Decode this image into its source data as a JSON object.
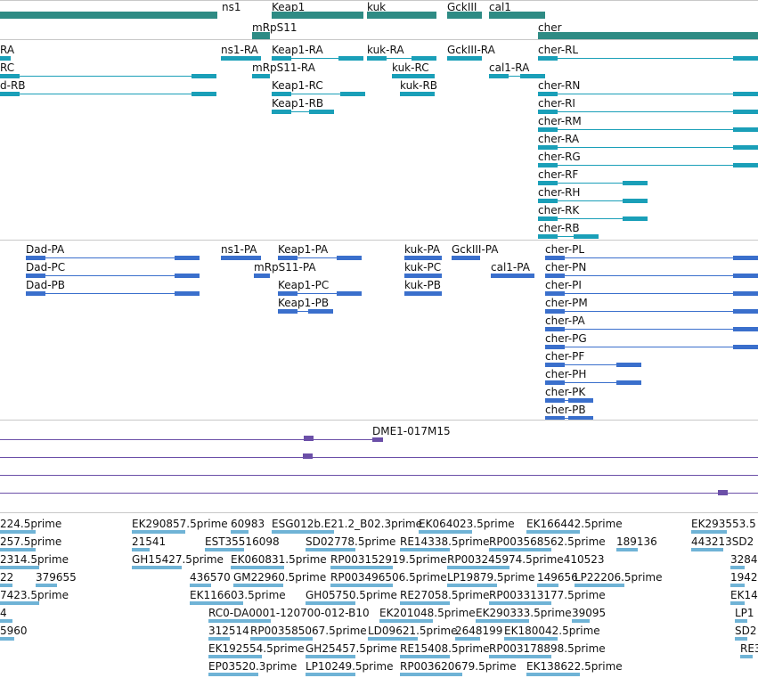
{
  "colors": {
    "gene": "#2e8b84",
    "transcript": "#1a9fb8",
    "protein": "#3a6fcc",
    "clone": "#6b4fa8",
    "est": "#6fb3d6",
    "divider": "#c8c8c8"
  },
  "tracks": {
    "genes": {
      "features": [
        {
          "label": "ns1",
          "segs": [
            [
              0,
              244
            ]
          ]
        },
        {
          "label": "Keap1",
          "segs": [
            [
              305,
              408
            ]
          ]
        },
        {
          "label": "kuk",
          "segs": [
            [
              412,
              490
            ]
          ]
        },
        {
          "label": "GckIII",
          "segs": [
            [
              502,
              541
            ]
          ]
        },
        {
          "label": "cal1",
          "segs": [
            [
              549,
              612
            ]
          ]
        },
        {
          "label": "mRpS11",
          "segs": [
            [
              283,
              303
            ]
          ]
        },
        {
          "label": "cher",
          "segs": [
            [
              604,
              851
            ]
          ]
        }
      ]
    },
    "transcripts": {
      "features": [
        {
          "label": "RA",
          "segs": [
            [
              0,
              12
            ]
          ]
        },
        {
          "label": "ns1-RA",
          "segs": [
            [
              248,
              293
            ]
          ]
        },
        {
          "label": "Keap1-RA",
          "segs": [
            [
              305,
              408
            ]
          ]
        },
        {
          "label": "kuk-RA",
          "segs": [
            [
              412,
              490
            ]
          ]
        },
        {
          "label": "GckIII-RA",
          "segs": [
            [
              502,
              541
            ]
          ]
        },
        {
          "label": "cher-RL",
          "segs": [
            [
              604,
              851
            ]
          ]
        },
        {
          "label": "RC",
          "segs": [
            [
              0,
              243
            ]
          ]
        },
        {
          "label": "mRpS11-RA",
          "segs": [
            [
              283,
              303
            ]
          ]
        },
        {
          "label": "kuk-RC",
          "segs": [
            [
              440,
              488
            ]
          ]
        },
        {
          "label": "cal1-RA",
          "segs": [
            [
              549,
              612
            ]
          ]
        },
        {
          "label": "d-RB",
          "segs": [
            [
              0,
              243
            ]
          ]
        },
        {
          "label": "Keap1-RC",
          "segs": [
            [
              305,
              410
            ]
          ]
        },
        {
          "label": "kuk-RB",
          "segs": [
            [
              449,
              488
            ]
          ]
        },
        {
          "label": "cher-RN",
          "segs": [
            [
              604,
              851
            ]
          ]
        },
        {
          "label": "Keap1-RB",
          "segs": [
            [
              305,
              375
            ]
          ]
        },
        {
          "label": "cher-RI",
          "segs": [
            [
              604,
              851
            ]
          ]
        },
        {
          "label": "cher-RM",
          "segs": [
            [
              604,
              851
            ]
          ]
        },
        {
          "label": "cher-RA",
          "segs": [
            [
              604,
              851
            ]
          ]
        },
        {
          "label": "cher-RG",
          "segs": [
            [
              604,
              851
            ]
          ]
        },
        {
          "label": "cher-RF",
          "segs": [
            [
              604,
              727
            ]
          ]
        },
        {
          "label": "cher-RH",
          "segs": [
            [
              604,
              727
            ]
          ]
        },
        {
          "label": "cher-RK",
          "segs": [
            [
              604,
              727
            ]
          ]
        },
        {
          "label": "cher-RB",
          "segs": [
            [
              604,
              672
            ]
          ]
        }
      ]
    },
    "proteins": {
      "features": [
        {
          "label": "Dad-PA",
          "segs": [
            [
              29,
              224
            ]
          ]
        },
        {
          "label": "ns1-PA",
          "segs": [
            [
              248,
              293
            ]
          ]
        },
        {
          "label": "Keap1-PA",
          "segs": [
            [
              312,
              406
            ]
          ]
        },
        {
          "label": "kuk-PA",
          "segs": [
            [
              454,
              496
            ]
          ]
        },
        {
          "label": "GckIII-PA",
          "segs": [
            [
              507,
              539
            ]
          ]
        },
        {
          "label": "cher-PL",
          "segs": [
            [
              612,
              851
            ]
          ]
        },
        {
          "label": "Dad-PC",
          "segs": [
            [
              29,
              224
            ]
          ]
        },
        {
          "label": "mRpS11-PA",
          "segs": [
            [
              285,
              303
            ]
          ]
        },
        {
          "label": "kuk-PC",
          "segs": [
            [
              454,
              496
            ]
          ]
        },
        {
          "label": "cal1-PA",
          "segs": [
            [
              551,
              600
            ]
          ]
        },
        {
          "label": "cher-PN",
          "segs": [
            [
              612,
              851
            ]
          ]
        },
        {
          "label": "Dad-PB",
          "segs": [
            [
              29,
              224
            ]
          ]
        },
        {
          "label": "Keap1-PC",
          "segs": [
            [
              312,
              406
            ]
          ]
        },
        {
          "label": "kuk-PB",
          "segs": [
            [
              454,
              496
            ]
          ]
        },
        {
          "label": "cher-PI",
          "segs": [
            [
              612,
              851
            ]
          ]
        },
        {
          "label": "Keap1-PB",
          "segs": [
            [
              312,
              374
            ]
          ]
        },
        {
          "label": "cher-PM",
          "segs": [
            [
              612,
              851
            ]
          ]
        },
        {
          "label": "cher-PA",
          "segs": [
            [
              612,
              851
            ]
          ]
        },
        {
          "label": "cher-PG",
          "segs": [
            [
              612,
              851
            ]
          ]
        },
        {
          "label": "cher-PF",
          "segs": [
            [
              612,
              720
            ]
          ]
        },
        {
          "label": "cher-PH",
          "segs": [
            [
              612,
              720
            ]
          ]
        },
        {
          "label": "cher-PK",
          "segs": [
            [
              612,
              666
            ]
          ]
        },
        {
          "label": "cher-PB",
          "segs": [
            [
              612,
              666
            ]
          ]
        }
      ]
    },
    "clones": {
      "features": [
        {
          "label": "DME1-017M15",
          "segs": [
            [
              418,
              430
            ]
          ]
        }
      ]
    },
    "ests": {
      "features": [
        {
          "label": "224.5prime"
        },
        {
          "label": "EK290857.5prime"
        },
        {
          "label": "60983"
        },
        {
          "label": "ESG012b.E21.2_B02.3prime"
        },
        {
          "label": "EK064023.5prime"
        },
        {
          "label": "EK166442.5prime"
        },
        {
          "label": "EK293553.5"
        },
        {
          "label": "257.5prime"
        },
        {
          "label": "21541"
        },
        {
          "label": "EST35516098"
        },
        {
          "label": "SD02778.5prime"
        },
        {
          "label": "RE14338.5prime"
        },
        {
          "label": "RP003568562.5prime"
        },
        {
          "label": "189136"
        },
        {
          "label": "443213SD2"
        },
        {
          "label": "2314.5prime"
        },
        {
          "label": "GH15427.5prime"
        },
        {
          "label": "EK060831.5prime"
        },
        {
          "label": "RP003152919.5prime"
        },
        {
          "label": "RP003245974.5prime410523"
        },
        {
          "label": "3284"
        },
        {
          "label": "22"
        },
        {
          "label": "379655"
        },
        {
          "label": "436570"
        },
        {
          "label": "GM22960.5prime"
        },
        {
          "label": "RP003496506.5prime"
        },
        {
          "label": "LP19879.5prime"
        },
        {
          "label": "149656"
        },
        {
          "label": "LP22206.5prime"
        },
        {
          "label": "1942"
        },
        {
          "label": "7423.5prime"
        },
        {
          "label": "EK116603.5prime"
        },
        {
          "label": "GH05750.5prime"
        },
        {
          "label": "RE27058.5prime"
        },
        {
          "label": "RP003313177.5prime"
        },
        {
          "label": "EK14"
        },
        {
          "label": "4"
        },
        {
          "label": "RC0-DA0001-120700-012-B10"
        },
        {
          "label": "EK201048.5prime"
        },
        {
          "label": "EK290333.5prime"
        },
        {
          "label": "39095"
        },
        {
          "label": "LP1"
        },
        {
          "label": "5960"
        },
        {
          "label": "312514"
        },
        {
          "label": "RP003585067.5prime"
        },
        {
          "label": "LD09621.5prime"
        },
        {
          "label": "2648199"
        },
        {
          "label": "EK180042.5prime"
        },
        {
          "label": "SD2"
        },
        {
          "label": "EK192554.5prime"
        },
        {
          "label": "GH25457.5prime"
        },
        {
          "label": "RE15408.5prime"
        },
        {
          "label": "RP003178898.5prime"
        },
        {
          "label": "RE3"
        },
        {
          "label": "EP03520.3prime"
        },
        {
          "label": "LP10249.5prime"
        },
        {
          "label": "RP003620679.5prime"
        },
        {
          "label": "EK138622.5prime"
        }
      ]
    }
  }
}
